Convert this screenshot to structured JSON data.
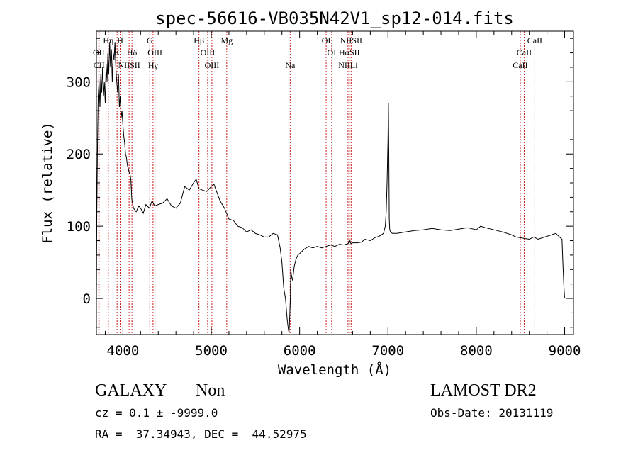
{
  "chart_data": {
    "type": "line",
    "title": "spec-56616-VB035N42V1_sp12-014.fits",
    "xlabel": "Wavelength (Å)",
    "ylabel": "Flux (relative)",
    "xlim": [
      3700,
      9100
    ],
    "ylim": [
      -50,
      370
    ],
    "xticks": [
      4000,
      5000,
      6000,
      7000,
      8000,
      9000
    ],
    "yticks": [
      0,
      100,
      200,
      300
    ],
    "grid": false,
    "series": [
      {
        "color": "#000000",
        "x": [
          3700,
          3705,
          3712,
          3720,
          3730,
          3740,
          3750,
          3760,
          3770,
          3780,
          3790,
          3800,
          3810,
          3820,
          3830,
          3840,
          3850,
          3860,
          3870,
          3880,
          3890,
          3900,
          3910,
          3920,
          3930,
          3940,
          3950,
          3960,
          3970,
          3980,
          3990,
          4000,
          4010,
          4020,
          4030,
          4040,
          4050,
          4060,
          4070,
          4080,
          4090,
          4100,
          4120,
          4150,
          4180,
          4200,
          4230,
          4260,
          4300,
          4330,
          4360,
          4400,
          4450,
          4500,
          4550,
          4600,
          4650,
          4700,
          4750,
          4800,
          4830,
          4860,
          4900,
          4950,
          5000,
          5030,
          5060,
          5100,
          5150,
          5200,
          5250,
          5300,
          5350,
          5400,
          5450,
          5500,
          5550,
          5600,
          5650,
          5700,
          5750,
          5780,
          5800,
          5820,
          5840,
          5860,
          5870,
          5880,
          5890,
          5895,
          5900,
          5910,
          5920,
          5940,
          5960,
          5980,
          6000,
          6050,
          6100,
          6150,
          6200,
          6250,
          6300,
          6350,
          6400,
          6450,
          6500,
          6550,
          6560,
          6565,
          6570,
          6580,
          6600,
          6650,
          6700,
          6720,
          6740,
          6800,
          6850,
          6900,
          6950,
          6970,
          6980,
          6990,
          7000,
          7005,
          7010,
          7015,
          7020,
          7030,
          7050,
          7100,
          7200,
          7300,
          7400,
          7500,
          7600,
          7700,
          7800,
          7900,
          8000,
          8050,
          8100,
          8200,
          8300,
          8400,
          8450,
          8500,
          8550,
          8600,
          8650,
          8700,
          8750,
          8800,
          8850,
          8900,
          8950,
          8970,
          8980,
          8990,
          9000
        ],
        "values": [
          0,
          120,
          210,
          280,
          300,
          265,
          310,
          285,
          320,
          280,
          300,
          270,
          325,
          300,
          340,
          310,
          355,
          320,
          345,
          300,
          340,
          330,
          355,
          320,
          300,
          285,
          310,
          265,
          280,
          250,
          260,
          240,
          225,
          215,
          200,
          195,
          185,
          180,
          175,
          172,
          165,
          138,
          125,
          120,
          128,
          125,
          118,
          130,
          125,
          135,
          128,
          130,
          132,
          138,
          128,
          125,
          132,
          155,
          150,
          160,
          165,
          152,
          150,
          148,
          155,
          158,
          148,
          135,
          125,
          110,
          108,
          100,
          98,
          92,
          95,
          90,
          88,
          85,
          85,
          90,
          88,
          70,
          50,
          15,
          0,
          -30,
          -40,
          -48,
          -20,
          0,
          40,
          30,
          25,
          45,
          55,
          60,
          62,
          68,
          72,
          70,
          72,
          70,
          72,
          74,
          72,
          75,
          74,
          76,
          80,
          78,
          80,
          76,
          77,
          77,
          78,
          80,
          82,
          80,
          84,
          86,
          90,
          100,
          120,
          160,
          220,
          270,
          200,
          110,
          95,
          92,
          90,
          90,
          92,
          94,
          95,
          97,
          95,
          94,
          96,
          98,
          95,
          100,
          98,
          95,
          92,
          88,
          85,
          84,
          83,
          82,
          85,
          82,
          84,
          86,
          88,
          90,
          84,
          82,
          50,
          20,
          0
        ]
      }
    ],
    "lines": [
      {
        "label": "OII",
        "wavelength": 3727,
        "row": 1
      },
      {
        "label": "CII",
        "wavelength": 3730,
        "row": 2
      },
      {
        "label": "Hη",
        "wavelength": 3835,
        "row": 0
      },
      {
        "label": "K",
        "wavelength": 3934,
        "row": 1
      },
      {
        "label": "H",
        "wavelength": 3969,
        "row": 0
      },
      {
        "label": "NIISII",
        "wavelength": 4070,
        "row": 2
      },
      {
        "label": "Hδ",
        "wavelength": 4102,
        "row": 1
      },
      {
        "label": "G",
        "wavelength": 4304,
        "row": 0
      },
      {
        "label": "OIII",
        "wavelength": 4363,
        "row": 1
      },
      {
        "label": "Hγ",
        "wavelength": 4341,
        "row": 2
      },
      {
        "label": "Hβ",
        "wavelength": 4861,
        "row": 0
      },
      {
        "label": "OIII",
        "wavelength": 4959,
        "row": 1
      },
      {
        "label": "OIII",
        "wavelength": 5007,
        "row": 2
      },
      {
        "label": "Mg",
        "wavelength": 5175,
        "row": 0
      },
      {
        "label": "Na",
        "wavelength": 5893,
        "row": 2
      },
      {
        "label": "OI",
        "wavelength": 6300,
        "row": 0
      },
      {
        "label": "OI",
        "wavelength": 6363,
        "row": 1
      },
      {
        "label": "NIISII",
        "wavelength": 6583,
        "row": 0
      },
      {
        "label": "HαSII",
        "wavelength": 6563,
        "row": 1
      },
      {
        "label": "NIILi",
        "wavelength": 6548,
        "row": 2
      },
      {
        "label": "CaII",
        "wavelength": 8662,
        "row": 0
      },
      {
        "label": "CaII",
        "wavelength": 8542,
        "row": 1
      },
      {
        "label": "CaII",
        "wavelength": 8498,
        "row": 2
      }
    ]
  },
  "info": {
    "object_class": "GALAXY",
    "object_subclass": "Non",
    "survey": "LAMOST DR2",
    "cz_line": "cz = 0.1 ± -9999.0",
    "obs_date": "Obs-Date: 20131119",
    "radec_line": "RA =  37.34943, DEC =  44.52975"
  }
}
